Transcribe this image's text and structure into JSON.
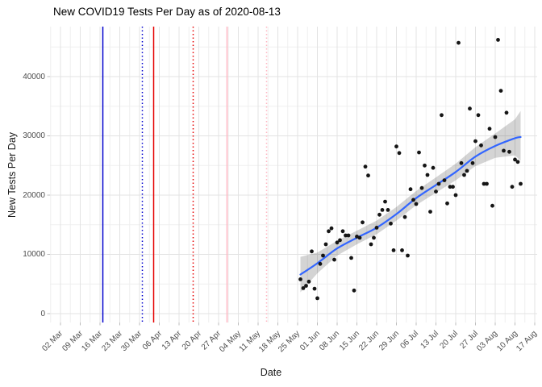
{
  "title": "New COVID19 Tests Per Day as of 2020-08-13",
  "chart_data": {
    "type": "scatter",
    "title": "New COVID19 Tests Per Day as of 2020-08-13",
    "xlabel": "Date",
    "ylabel": "New Tests Per Day",
    "grid": "on",
    "legend": "none",
    "ylim": [
      -1500,
      48400
    ],
    "y_ticks": [
      0,
      10000,
      20000,
      30000,
      40000
    ],
    "y_minor_ticks": [
      5000,
      15000,
      25000,
      35000,
      45000
    ],
    "x_tick_labels": [
      "02 Mar",
      "09 Mar",
      "16 Mar",
      "23 Mar",
      "30 Mar",
      "06 Apr",
      "13 Apr",
      "20 Apr",
      "27 Apr",
      "04 May",
      "11 May",
      "18 May",
      "25 May",
      "01 Jun",
      "08 Jun",
      "15 Jun",
      "22 Jun",
      "29 Jun",
      "06 Jul",
      "13 Jul",
      "20 Jul",
      "27 Jul",
      "03 Aug",
      "10 Aug",
      "17 Aug"
    ],
    "x_tick_start_date": "2020-03-02",
    "x_tick_interval_days": 7,
    "point_color": "#151515",
    "points": {
      "dates": [
        "2020-05-26",
        "2020-05-27",
        "2020-05-28",
        "2020-05-29",
        "2020-05-30",
        "2020-05-31",
        "2020-06-01",
        "2020-06-02",
        "2020-06-03",
        "2020-06-04",
        "2020-06-05",
        "2020-06-06",
        "2020-06-07",
        "2020-06-08",
        "2020-06-09",
        "2020-06-10",
        "2020-06-11",
        "2020-06-12",
        "2020-06-13",
        "2020-06-14",
        "2020-06-15",
        "2020-06-16",
        "2020-06-17",
        "2020-06-18",
        "2020-06-19",
        "2020-06-20",
        "2020-06-21",
        "2020-06-22",
        "2020-06-23",
        "2020-06-24",
        "2020-06-25",
        "2020-06-26",
        "2020-06-27",
        "2020-06-28",
        "2020-06-29",
        "2020-06-30",
        "2020-07-01",
        "2020-07-02",
        "2020-07-03",
        "2020-07-04",
        "2020-07-05",
        "2020-07-06",
        "2020-07-07",
        "2020-07-08",
        "2020-07-09",
        "2020-07-10",
        "2020-07-11",
        "2020-07-12",
        "2020-07-13",
        "2020-07-14",
        "2020-07-15",
        "2020-07-16",
        "2020-07-17",
        "2020-07-18",
        "2020-07-19",
        "2020-07-20",
        "2020-07-21",
        "2020-07-22",
        "2020-07-23",
        "2020-07-24",
        "2020-07-25",
        "2020-07-26",
        "2020-07-27",
        "2020-07-28",
        "2020-07-29",
        "2020-07-30",
        "2020-07-31",
        "2020-08-01",
        "2020-08-02",
        "2020-08-03",
        "2020-08-04",
        "2020-08-05",
        "2020-08-06",
        "2020-08-07",
        "2020-08-08",
        "2020-08-09",
        "2020-08-10",
        "2020-08-11",
        "2020-08-12"
      ],
      "values": [
        5800,
        4300,
        4700,
        5400,
        10500,
        4200,
        2600,
        8400,
        9800,
        11700,
        13900,
        14400,
        9100,
        12000,
        12400,
        13900,
        13200,
        13200,
        9400,
        3900,
        13000,
        12800,
        15400,
        24800,
        23300,
        11700,
        12800,
        14500,
        16700,
        17500,
        18900,
        17500,
        15200,
        10700,
        28200,
        27100,
        10700,
        16300,
        9800,
        21000,
        19200,
        18500,
        27200,
        21200,
        25000,
        23400,
        17200,
        24600,
        20600,
        21900,
        33500,
        22500,
        18600,
        21400,
        21400,
        20000,
        45700,
        25400,
        23400,
        24100,
        34600,
        25400,
        29100,
        33500,
        28400,
        21900,
        21900,
        31200,
        18200,
        29800,
        46200,
        37600,
        27500,
        33900,
        27300,
        21400,
        26000,
        25600,
        21900
      ]
    },
    "smooth_line": {
      "color": "#3366FF",
      "dates": [
        "2020-05-26",
        "2020-06-01",
        "2020-06-08",
        "2020-06-15",
        "2020-06-22",
        "2020-06-29",
        "2020-07-06",
        "2020-07-13",
        "2020-07-20",
        "2020-07-27",
        "2020-08-03",
        "2020-08-10",
        "2020-08-12"
      ],
      "values": [
        6600,
        8500,
        11000,
        12800,
        14500,
        16800,
        19500,
        21700,
        23900,
        26500,
        28300,
        29600,
        29800
      ]
    },
    "ribbon": {
      "color": "rgba(0,0,0,0.17)",
      "dates": [
        "2020-05-26",
        "2020-06-01",
        "2020-06-08",
        "2020-06-15",
        "2020-06-22",
        "2020-06-29",
        "2020-07-06",
        "2020-07-13",
        "2020-07-20",
        "2020-07-27",
        "2020-08-03",
        "2020-08-10",
        "2020-08-12"
      ],
      "upper": [
        9600,
        10300,
        12300,
        14000,
        15700,
        18000,
        20700,
        23000,
        25300,
        28100,
        30400,
        32800,
        34200
      ],
      "lower": [
        3600,
        6800,
        9800,
        11700,
        13400,
        15700,
        18300,
        20400,
        22500,
        24900,
        26300,
        26700,
        25800
      ]
    },
    "vlines": [
      {
        "date": "2020-03-17",
        "color": "#0000CD",
        "style": "solid"
      },
      {
        "date": "2020-03-31",
        "color": "#0000CD",
        "style": "dotted"
      },
      {
        "date": "2020-04-04",
        "color": "#E60000",
        "style": "solid"
      },
      {
        "date": "2020-04-18",
        "color": "#E60000",
        "style": "dotted"
      },
      {
        "date": "2020-04-30",
        "color": "#FFB6C1",
        "style": "solid"
      },
      {
        "date": "2020-05-14",
        "color": "#FFB6C1",
        "style": "dotted"
      }
    ],
    "colors": {
      "grid_major": "#e3e3e3",
      "grid_minor": "#efefef",
      "tick_mark": "#bdbdbd",
      "tick_text": "#4d4d4d"
    }
  }
}
